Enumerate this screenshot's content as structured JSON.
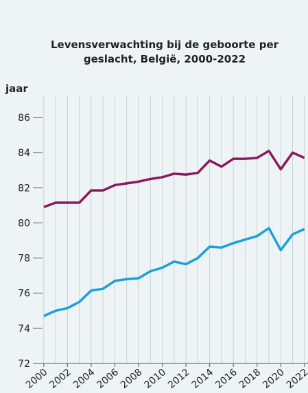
{
  "chart_data": {
    "type": "line",
    "title": "Levensverwachting bij de geboorte per geslacht, België, 2000-2022",
    "y_label": "jaar",
    "x": [
      2000,
      2001,
      2002,
      2003,
      2004,
      2005,
      2006,
      2007,
      2008,
      2009,
      2010,
      2011,
      2012,
      2013,
      2014,
      2015,
      2016,
      2017,
      2018,
      2019,
      2020,
      2021,
      2022
    ],
    "series": [
      {
        "color": "#8b1a5c",
        "values": [
          80.9,
          81.15,
          81.15,
          81.15,
          81.85,
          81.85,
          82.15,
          82.25,
          82.35,
          82.5,
          82.6,
          82.8,
          82.75,
          82.85,
          83.55,
          83.2,
          83.65,
          83.65,
          83.7,
          84.1,
          83.05,
          84.0,
          83.7
        ]
      },
      {
        "color": "#1aa0dc",
        "values": [
          74.7,
          75.0,
          75.15,
          75.5,
          76.15,
          76.25,
          76.7,
          76.8,
          76.85,
          77.25,
          77.45,
          77.8,
          77.65,
          78.0,
          78.65,
          78.6,
          78.85,
          79.05,
          79.25,
          79.7,
          78.45,
          79.35,
          79.65
        ]
      }
    ],
    "xlim": [
      1999.2,
      2022.3
    ],
    "xticks": [
      2000,
      2002,
      2004,
      2006,
      2008,
      2010,
      2012,
      2014,
      2016,
      2018,
      2020,
      2022
    ],
    "ylim": [
      72,
      86
    ],
    "yticks": [
      72,
      74,
      76,
      78,
      80,
      82,
      84,
      86
    ],
    "grid": "x"
  }
}
